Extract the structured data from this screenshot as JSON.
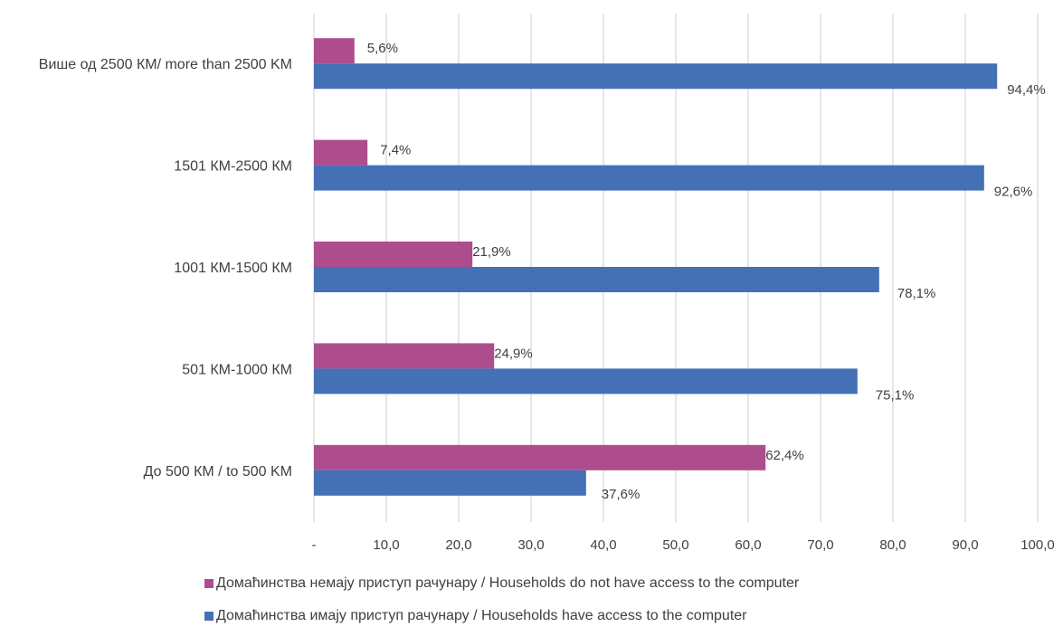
{
  "chart_data": {
    "type": "bar",
    "orientation": "horizontal",
    "categories": [
      "Више од 2500 КМ/ more than 2500 KM",
      "1501 КМ-2500 КМ",
      "1001 КМ-1500 КМ",
      "501 КМ-1000 КМ",
      "До 500 КМ / to 500 KM"
    ],
    "series": [
      {
        "name": "Домаћинства немају приступ рачунару / Households do not have access to the computer",
        "color": "#AE4D8E",
        "values": [
          5.6,
          7.4,
          21.9,
          24.9,
          62.4
        ],
        "labels": [
          "5,6%",
          "7,4%",
          "21,9%",
          "24,9%",
          "62,4%"
        ]
      },
      {
        "name": "Домаћинства имају приступ рачунару / Households have access to the computer",
        "color": "#4470B6",
        "values": [
          94.4,
          92.6,
          78.1,
          75.1,
          37.6
        ],
        "labels": [
          "94,4%",
          "92,6%",
          "78,1%",
          "75,1%",
          "37,6%"
        ]
      }
    ],
    "x_ticks": [
      "-",
      "10,0",
      "20,0",
      "30,0",
      "40,0",
      "50,0",
      "60,0",
      "70,0",
      "80,0",
      "90,0",
      "100,0"
    ],
    "xlim": [
      0,
      100
    ],
    "grid": true,
    "legend_position": "bottom",
    "title": "",
    "xlabel": "",
    "ylabel": ""
  }
}
